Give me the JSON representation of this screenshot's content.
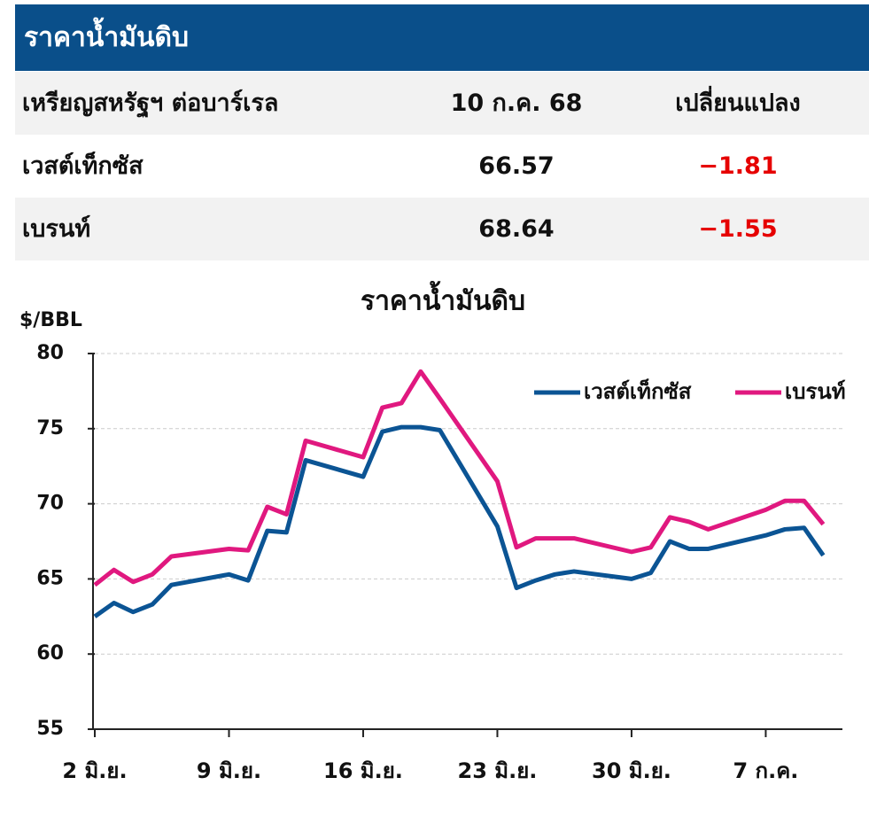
{
  "header": {
    "title": "ราคาน้ำมันดิบ"
  },
  "table": {
    "columns": [
      "เหรียญสหรัฐฯ ต่อบาร์เรล",
      "10 ก.ค. 68",
      "เปลี่ยนแปลง"
    ],
    "rows": [
      [
        "เวสต์เท็กซัส",
        "66.57",
        "−1.81"
      ],
      [
        "เบรนท์",
        "68.64",
        "−1.55"
      ]
    ]
  },
  "chart_data": {
    "type": "line",
    "title": "ราคาน้ำมันดิบ",
    "y_label": "$/BBL",
    "x": [
      "06-02",
      "06-03",
      "06-04",
      "06-05",
      "06-06",
      "06-09",
      "06-10",
      "06-11",
      "06-12",
      "06-13",
      "06-16",
      "06-17",
      "06-18",
      "06-19",
      "06-20",
      "06-23",
      "06-24",
      "06-25",
      "06-26",
      "06-27",
      "06-30",
      "07-01",
      "07-02",
      "07-03",
      "07-04",
      "07-07",
      "07-08",
      "07-09",
      "07-10"
    ],
    "series": [
      {
        "name": "เวสต์เท็กซัส",
        "color": "#0b5494",
        "values": [
          62.5,
          63.4,
          62.8,
          63.3,
          64.6,
          65.3,
          64.9,
          68.2,
          68.1,
          72.9,
          71.8,
          74.8,
          75.1,
          75.1,
          74.9,
          68.5,
          64.4,
          64.9,
          65.3,
          65.5,
          65.0,
          65.4,
          67.5,
          67.0,
          67.0,
          67.9,
          68.3,
          68.4,
          66.57
        ]
      },
      {
        "name": "เบรนท์",
        "color": "#e0187f",
        "values": [
          64.6,
          65.6,
          64.8,
          65.3,
          66.5,
          67.0,
          66.9,
          69.8,
          69.3,
          74.2,
          73.1,
          76.4,
          76.7,
          78.8,
          77.0,
          71.5,
          67.1,
          67.7,
          67.7,
          67.7,
          66.8,
          67.1,
          69.1,
          68.8,
          68.3,
          69.6,
          70.2,
          70.2,
          68.64
        ]
      }
    ],
    "xlim": [
      "06-02",
      "07-11"
    ],
    "xticks": [
      {
        "value": "06-02",
        "label": "2 มิ.ย."
      },
      {
        "value": "06-09",
        "label": "9 มิ.ย."
      },
      {
        "value": "06-16",
        "label": "16 มิ.ย."
      },
      {
        "value": "06-23",
        "label": "23 มิ.ย."
      },
      {
        "value": "06-30",
        "label": "30 มิ.ย."
      },
      {
        "value": "07-07",
        "label": "7 ก.ค."
      }
    ],
    "ylim": [
      55,
      80
    ],
    "yticks": [
      55,
      60,
      65,
      70,
      75,
      80
    ],
    "grid": true,
    "legend": "upper right"
  }
}
